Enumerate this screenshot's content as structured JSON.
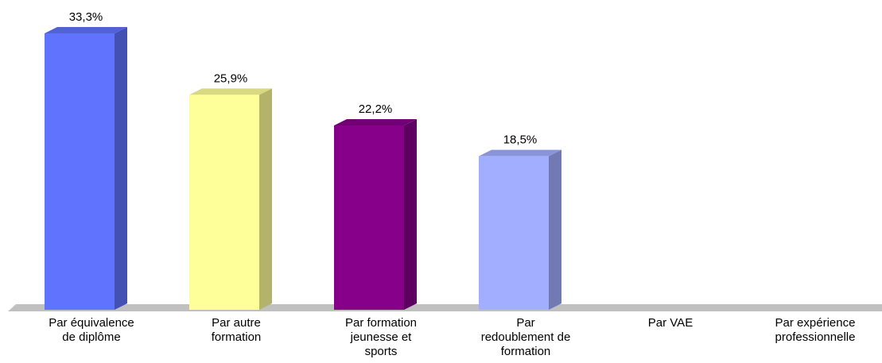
{
  "chart_data": {
    "type": "bar3d",
    "categories": [
      "Par équivalence de diplôme",
      "Par autre formation",
      "Par formation jeunesse et sports",
      "Par redoublement de formation",
      "Par VAE",
      "Par expérience professionnelle"
    ],
    "values": [
      33.3,
      25.9,
      22.2,
      18.5,
      null,
      null
    ],
    "value_labels": [
      "33,3%",
      "25,9%",
      "22,2%",
      "18,5%",
      null,
      null
    ],
    "colors": [
      "#5f73ff",
      "#ffff99",
      "#86008a",
      "#a2aeff",
      null,
      null
    ]
  }
}
